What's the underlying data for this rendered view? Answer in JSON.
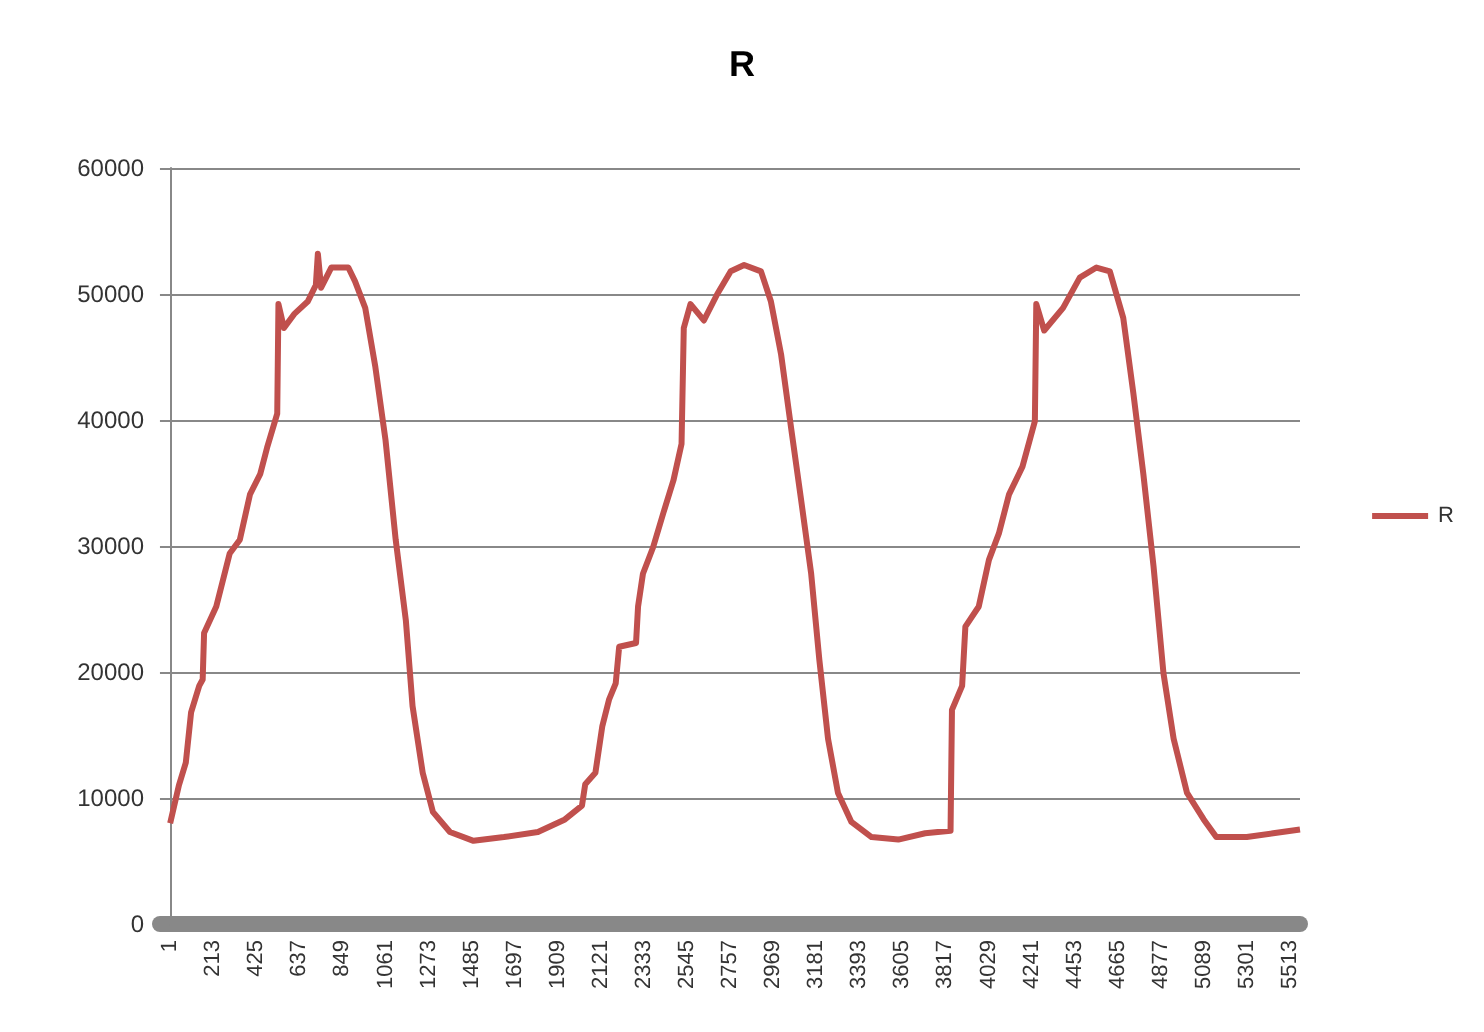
{
  "chart_data": {
    "type": "line",
    "title": "R",
    "legend": "right",
    "x": [
      1,
      44,
      78,
      104,
      144,
      161,
      168,
      228,
      261,
      294,
      344,
      394,
      444,
      478,
      528,
      534,
      561,
      611,
      678,
      718,
      728,
      744,
      794,
      878,
      911,
      961,
      1011,
      1061,
      1111,
      1161,
      1194,
      1244,
      1294,
      1378,
      1494,
      1644,
      1811,
      1944,
      2028,
      2044,
      2094,
      2128,
      2161,
      2194,
      2211,
      2294,
      2304,
      2328,
      2378,
      2428,
      2478,
      2518,
      2529,
      2562,
      2628,
      2694,
      2760,
      2826,
      2909,
      2958,
      3008,
      3057,
      3107,
      3156,
      3196,
      3239,
      3288,
      3354,
      3453,
      3585,
      3717,
      3842,
      3849,
      3899,
      3915,
      3981,
      4031,
      4080,
      4130,
      4196,
      4257,
      4264,
      4303,
      4396,
      4478,
      4560,
      4626,
      4692,
      4742,
      4791,
      4841,
      4890,
      4940,
      5006,
      5088,
      5150,
      5300,
      5430,
      5562
    ],
    "series": [
      {
        "name": "R",
        "color": "#c0504d",
        "values": [
          8000,
          11000,
          12800,
          16800,
          18900,
          19400,
          23100,
          25200,
          27300,
          29400,
          30500,
          34100,
          35700,
          37800,
          40500,
          49200,
          47300,
          48400,
          49400,
          50700,
          53200,
          50500,
          52100,
          52100,
          51000,
          48900,
          44200,
          38400,
          30500,
          24100,
          17300,
          12000,
          8900,
          7300,
          6600,
          6900,
          7300,
          8300,
          9400,
          11100,
          12000,
          15700,
          17800,
          19100,
          22000,
          22300,
          25200,
          27800,
          29900,
          32600,
          35200,
          38100,
          47300,
          49200,
          47900,
          50000,
          51800,
          52300,
          51800,
          49400,
          45200,
          39400,
          33600,
          27800,
          21000,
          14700,
          10400,
          8100,
          6900,
          6700,
          7200,
          7400,
          17000,
          18900,
          23600,
          25200,
          28900,
          31000,
          34100,
          36300,
          39900,
          49200,
          47100,
          48900,
          51300,
          52100,
          51800,
          48100,
          42100,
          35700,
          28400,
          19900,
          14700,
          10400,
          8300,
          6900,
          6900,
          7200,
          7500
        ]
      }
    ],
    "xlim": [
      -49,
      5562
    ],
    "xticks": [
      1,
      213,
      425,
      637,
      849,
      1061,
      1273,
      1485,
      1697,
      1909,
      2121,
      2333,
      2545,
      2757,
      2969,
      3181,
      3393,
      3605,
      3817,
      4029,
      4241,
      4453,
      4665,
      4877,
      5089,
      5301,
      5513
    ],
    "ylim": [
      0,
      60000
    ],
    "yticks": [
      0,
      10000,
      20000,
      30000,
      40000,
      50000,
      60000
    ],
    "grid": "y"
  }
}
